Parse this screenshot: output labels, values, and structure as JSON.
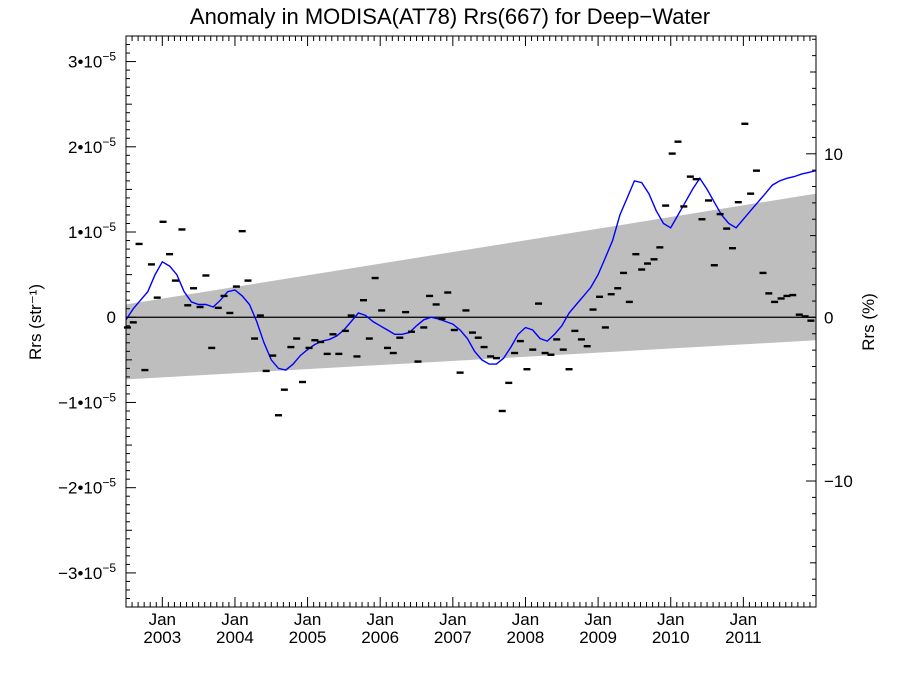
{
  "chart_data": {
    "type": "scatter",
    "title": "Anomaly in MODISA(AT78) Rrs(667) for Deep−Water",
    "ylabel_left": "Rrs (str⁻¹)",
    "ylabel_right": "Rrs (%)",
    "xlabel": "",
    "x_unit": "decimal year",
    "xlim": [
      2002.5,
      2012.0
    ],
    "ylim": [
      -3.4e-05,
      3.3e-05
    ],
    "ylim_right_percent": [
      -17.7,
      17.2
    ],
    "left_ticks": [
      {
        "value": 3e-05,
        "label": "3•10",
        "exp": "−5"
      },
      {
        "value": 2e-05,
        "label": "2•10",
        "exp": "−5"
      },
      {
        "value": 1e-05,
        "label": "1•10",
        "exp": "−5"
      },
      {
        "value": 0,
        "label": "0",
        "exp": ""
      },
      {
        "value": -1e-05,
        "label": "−1•10",
        "exp": "−5"
      },
      {
        "value": -2e-05,
        "label": "−2•10",
        "exp": "−5"
      },
      {
        "value": -3e-05,
        "label": "−3•10",
        "exp": "−5"
      }
    ],
    "right_ticks": [
      {
        "value": 10,
        "label": "10"
      },
      {
        "value": 0,
        "label": "0"
      },
      {
        "value": -10,
        "label": "−10"
      }
    ],
    "x_ticks": [
      {
        "value": 2003.0,
        "month": "Jan",
        "year": "2003"
      },
      {
        "value": 2004.0,
        "month": "Jan",
        "year": "2004"
      },
      {
        "value": 2005.0,
        "month": "Jan",
        "year": "2005"
      },
      {
        "value": 2006.0,
        "month": "Jan",
        "year": "2006"
      },
      {
        "value": 2007.0,
        "month": "Jan",
        "year": "2007"
      },
      {
        "value": 2008.0,
        "month": "Jan",
        "year": "2008"
      },
      {
        "value": 2009.0,
        "month": "Jan",
        "year": "2009"
      },
      {
        "value": 2010.0,
        "month": "Jan",
        "year": "2010"
      },
      {
        "value": 2011.0,
        "month": "Jan",
        "year": "2011"
      }
    ],
    "grey_band": {
      "x": [
        2002.5,
        2012.0
      ],
      "upper": [
        1.5e-06,
        1.45e-05
      ],
      "lower": [
        -7.3e-06,
        -2.7e-06
      ],
      "color": "#bebebe"
    },
    "zero_line": 0,
    "series": [
      {
        "kind": "points",
        "marker": "dash",
        "color": "#000000",
        "x": [
          2002.52,
          2002.6,
          2002.68,
          2002.76,
          2002.85,
          2002.93,
          2003.01,
          2003.1,
          2003.18,
          2003.27,
          2003.35,
          2003.43,
          2003.52,
          2003.6,
          2003.68,
          2003.77,
          2003.85,
          2003.93,
          2004.02,
          2004.1,
          2004.18,
          2004.27,
          2004.35,
          2004.43,
          2004.52,
          2004.6,
          2004.68,
          2004.77,
          2004.85,
          2004.93,
          2005.02,
          2005.1,
          2005.18,
          2005.27,
          2005.35,
          2005.43,
          2005.52,
          2005.6,
          2005.68,
          2005.77,
          2005.85,
          2005.93,
          2006.02,
          2006.1,
          2006.18,
          2006.27,
          2006.35,
          2006.43,
          2006.52,
          2006.6,
          2006.68,
          2006.77,
          2006.85,
          2006.93,
          2007.02,
          2007.1,
          2007.18,
          2007.27,
          2007.35,
          2007.43,
          2007.52,
          2007.6,
          2007.68,
          2007.77,
          2007.85,
          2007.93,
          2008.02,
          2008.1,
          2008.18,
          2008.27,
          2008.35,
          2008.43,
          2008.52,
          2008.6,
          2008.68,
          2008.77,
          2008.85,
          2008.93,
          2009.02,
          2009.1,
          2009.18,
          2009.27,
          2009.35,
          2009.43,
          2009.52,
          2009.6,
          2009.68,
          2009.77,
          2009.85,
          2009.93,
          2010.02,
          2010.1,
          2010.18,
          2010.27,
          2010.35,
          2010.43,
          2010.52,
          2010.6,
          2010.68,
          2010.77,
          2010.85,
          2010.93,
          2011.02,
          2011.1,
          2011.18,
          2011.27,
          2011.35,
          2011.43,
          2011.52,
          2011.6,
          2011.68,
          2011.77,
          2011.85,
          2011.93
        ],
        "y": [
          -1.2e-06,
          -6e-07,
          8.6e-06,
          -6.2e-06,
          6.2e-06,
          2.3e-06,
          1.12e-05,
          7.4e-06,
          4.3e-06,
          1.03e-05,
          1.4e-06,
          3.4e-06,
          1.2e-06,
          4.9e-06,
          -3.6e-06,
          1.1e-06,
          2.5e-06,
          5e-07,
          3.6e-06,
          1.01e-05,
          4.3e-06,
          -2.5e-06,
          2e-07,
          -6.3e-06,
          -4.5e-06,
          -1.15e-05,
          -8.5e-06,
          -3.5e-06,
          -2.5e-06,
          -7.6e-06,
          -3.6e-06,
          -2.7e-06,
          -2.9e-06,
          -4.3e-06,
          -2e-06,
          -4.3e-06,
          -1.6e-06,
          2e-07,
          -4.6e-06,
          2e-06,
          -2.5e-06,
          4.6e-06,
          8e-07,
          -3.6e-06,
          -4.2e-06,
          -2.4e-06,
          6e-07,
          -1.7e-06,
          -5.2e-06,
          -1.2e-06,
          2.5e-06,
          1.5e-06,
          -2e-07,
          2.9e-06,
          -1.5e-06,
          -6.5e-06,
          8e-07,
          -1.8e-06,
          -2.4e-06,
          -3.5e-06,
          -4.6e-06,
          -4.8e-06,
          -1.1e-05,
          -7.7e-06,
          -4.2e-06,
          -2.8e-06,
          -6.1e-06,
          -3.8e-06,
          1.6e-06,
          -4.2e-06,
          -4.4e-06,
          -2.6e-06,
          -3.8e-06,
          -6.1e-06,
          -1.6e-06,
          -2.6e-06,
          -3.4e-06,
          9e-07,
          2.4e-06,
          -1.2e-06,
          2.7e-06,
          3.4e-06,
          5.2e-06,
          1.8e-06,
          7.4e-06,
          5.6e-06,
          6.3e-06,
          6.8e-06,
          8.2e-06,
          1.31e-05,
          1.92e-05,
          2.06e-05,
          1.3e-05,
          1.65e-05,
          1.62e-05,
          1.15e-05,
          1.37e-05,
          6.1e-06,
          1.21e-05,
          1.04e-05,
          8.1e-06,
          1.35e-05,
          2.27e-05,
          1.45e-05,
          1.72e-05,
          5.2e-06,
          2.8e-06,
          1.8e-06,
          2.2e-06,
          2.5e-06,
          2.6e-06,
          3e-07,
          1e-07,
          -4e-07
        ]
      },
      {
        "kind": "line",
        "color": "#0000ff",
        "x": [
          2002.5,
          2002.6,
          2002.7,
          2002.8,
          2002.9,
          2003.0,
          2003.1,
          2003.2,
          2003.3,
          2003.4,
          2003.5,
          2003.6,
          2003.7,
          2003.8,
          2003.9,
          2004.0,
          2004.1,
          2004.2,
          2004.3,
          2004.4,
          2004.5,
          2004.6,
          2004.7,
          2004.8,
          2004.9,
          2005.0,
          2005.1,
          2005.2,
          2005.3,
          2005.4,
          2005.5,
          2005.6,
          2005.7,
          2005.8,
          2005.9,
          2006.0,
          2006.1,
          2006.2,
          2006.3,
          2006.4,
          2006.5,
          2006.6,
          2006.7,
          2006.8,
          2006.9,
          2007.0,
          2007.1,
          2007.2,
          2007.3,
          2007.4,
          2007.5,
          2007.6,
          2007.7,
          2007.8,
          2007.9,
          2008.0,
          2008.1,
          2008.2,
          2008.3,
          2008.4,
          2008.5,
          2008.6,
          2008.7,
          2008.8,
          2008.9,
          2009.0,
          2009.1,
          2009.2,
          2009.3,
          2009.4,
          2009.5,
          2009.6,
          2009.7,
          2009.8,
          2009.9,
          2010.0,
          2010.1,
          2010.2,
          2010.3,
          2010.4,
          2010.5,
          2010.6,
          2010.7,
          2010.8,
          2010.9,
          2011.0,
          2011.1,
          2011.2,
          2011.3,
          2011.4,
          2011.5,
          2011.6,
          2011.7,
          2011.8,
          2011.9,
          2012.0
        ],
        "y": [
          -3e-07,
          1e-06,
          2e-06,
          3e-06,
          5e-06,
          6.5e-06,
          6e-06,
          5e-06,
          3e-06,
          1.8e-06,
          1.5e-06,
          1.5e-06,
          1.2e-06,
          2e-06,
          3e-06,
          3.2e-06,
          2.5e-06,
          1.5e-06,
          -5e-07,
          -3e-06,
          -5e-06,
          -6e-06,
          -6.2e-06,
          -5.5e-06,
          -4.5e-06,
          -3.8e-06,
          -3.2e-06,
          -2.8e-06,
          -2.6e-06,
          -2.2e-06,
          -1.5e-06,
          -5e-07,
          5e-07,
          2e-07,
          -5e-07,
          -1e-06,
          -1.5e-06,
          -2e-06,
          -2e-06,
          -1.8e-06,
          -1e-06,
          -3e-07,
          0.0,
          -2e-07,
          -5e-07,
          -8e-07,
          -1.5e-06,
          -2.5e-06,
          -4e-06,
          -5e-06,
          -5.5e-06,
          -5.5e-06,
          -4.8e-06,
          -3.5e-06,
          -2e-06,
          -1.2e-06,
          -1.5e-06,
          -2.5e-06,
          -2.8e-06,
          -2e-06,
          -1e-06,
          5e-07,
          1.5e-06,
          2.5e-06,
          3.5e-06,
          5e-06,
          7e-06,
          9e-06,
          1.2e-05,
          1.4e-05,
          1.6e-05,
          1.58e-05,
          1.45e-05,
          1.25e-05,
          1.1e-05,
          1.05e-05,
          1.2e-05,
          1.35e-05,
          1.5e-05,
          1.63e-05,
          1.5e-05,
          1.35e-05,
          1.2e-05,
          1.1e-05,
          1.05e-05,
          1.15e-05,
          1.25e-05,
          1.35e-05,
          1.45e-05,
          1.55e-05,
          1.6e-05,
          1.63e-05,
          1.65e-05,
          1.68e-05,
          1.7e-05,
          1.72e-05
        ]
      }
    ]
  }
}
